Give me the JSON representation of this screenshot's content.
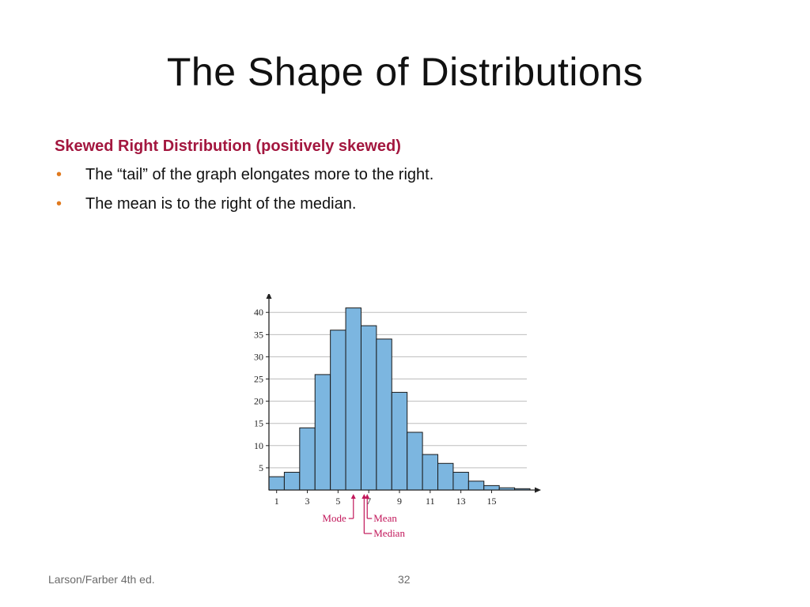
{
  "slide": {
    "title": "The Shape of Distributions",
    "subheading": "Skewed Right Distribution (positively skewed)",
    "bullets": [
      "The “tail” of the graph elongates more to the right.",
      "The mean is to the right of the median."
    ],
    "bullet_glyph": "•",
    "footer_left": "Larson/Farber 4th ed.",
    "page_number": "32"
  },
  "colors": {
    "title": "#111111",
    "subheading": "#a3173f",
    "bullet": "#e07a1f",
    "bar_fill": "#7cb6e0",
    "bar_stroke": "#1a1a1a",
    "annotation": "#c2185b",
    "grid": "#bdbdbd"
  },
  "chart_data": {
    "type": "bar",
    "bins": [
      1,
      2,
      3,
      4,
      5,
      6,
      7,
      8,
      9,
      10,
      11,
      12,
      13,
      14,
      15,
      16,
      17
    ],
    "values": [
      3,
      4,
      14,
      26,
      36,
      41,
      37,
      34,
      22,
      13,
      8,
      6,
      4,
      2,
      1,
      0.5,
      0.3
    ],
    "xtick_labels": [
      "1",
      "3",
      "5",
      "7",
      "9",
      "11",
      "13",
      "15"
    ],
    "xtick_values": [
      1,
      3,
      5,
      7,
      9,
      11,
      13,
      15
    ],
    "ytick_labels": [
      "5",
      "10",
      "15",
      "20",
      "25",
      "30",
      "35",
      "40"
    ],
    "ytick_values": [
      5,
      10,
      15,
      20,
      25,
      30,
      35,
      40
    ],
    "ylim": [
      0,
      42
    ],
    "xlim": [
      0.5,
      17.5
    ],
    "grid": true,
    "annotations": {
      "mode": {
        "label": "Mode",
        "x": 6.0
      },
      "median": {
        "label": "Median",
        "x": 6.7
      },
      "mean": {
        "label": "Mean",
        "x": 6.9
      }
    }
  }
}
